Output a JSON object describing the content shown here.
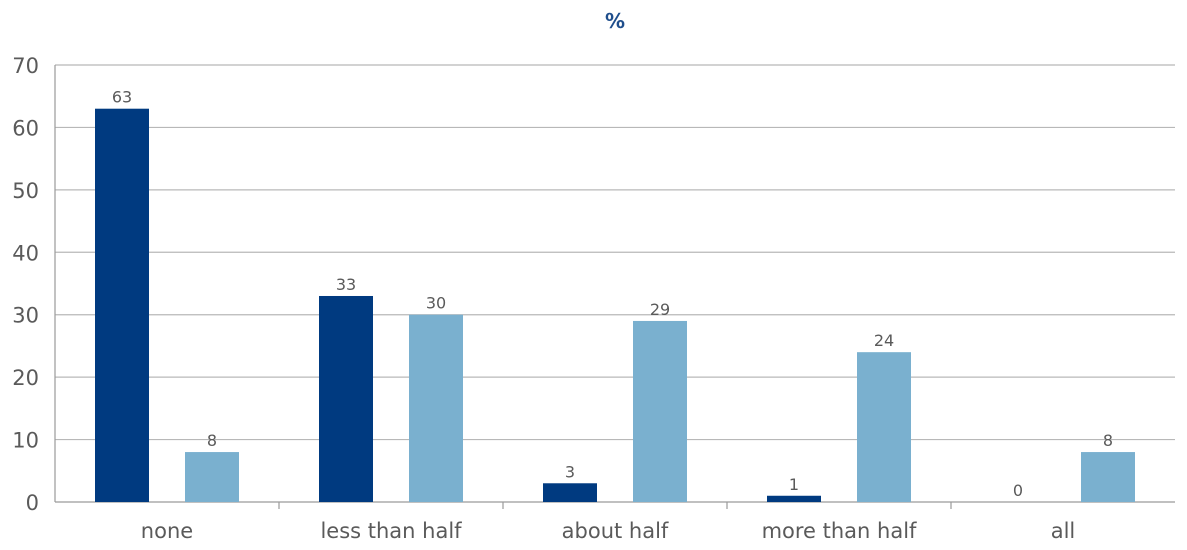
{
  "chart_data": {
    "type": "bar",
    "title": "%",
    "categories": [
      "none",
      "less than half",
      "about half",
      "more than half",
      "all"
    ],
    "series": [
      {
        "values": [
          63,
          33,
          3,
          1,
          0
        ]
      },
      {
        "values": [
          8,
          30,
          29,
          24,
          8
        ]
      }
    ],
    "ylim": [
      0,
      70
    ],
    "yticks": [
      0,
      10,
      20,
      30,
      40,
      50,
      60,
      70
    ],
    "grid": true,
    "legend": "none",
    "colors": {
      "series_0": "#003a80",
      "series_1": "#7ab0cf",
      "grid": "#b8b8b8",
      "axis": "#9a9a9a",
      "title": "#1f4e8c"
    }
  }
}
